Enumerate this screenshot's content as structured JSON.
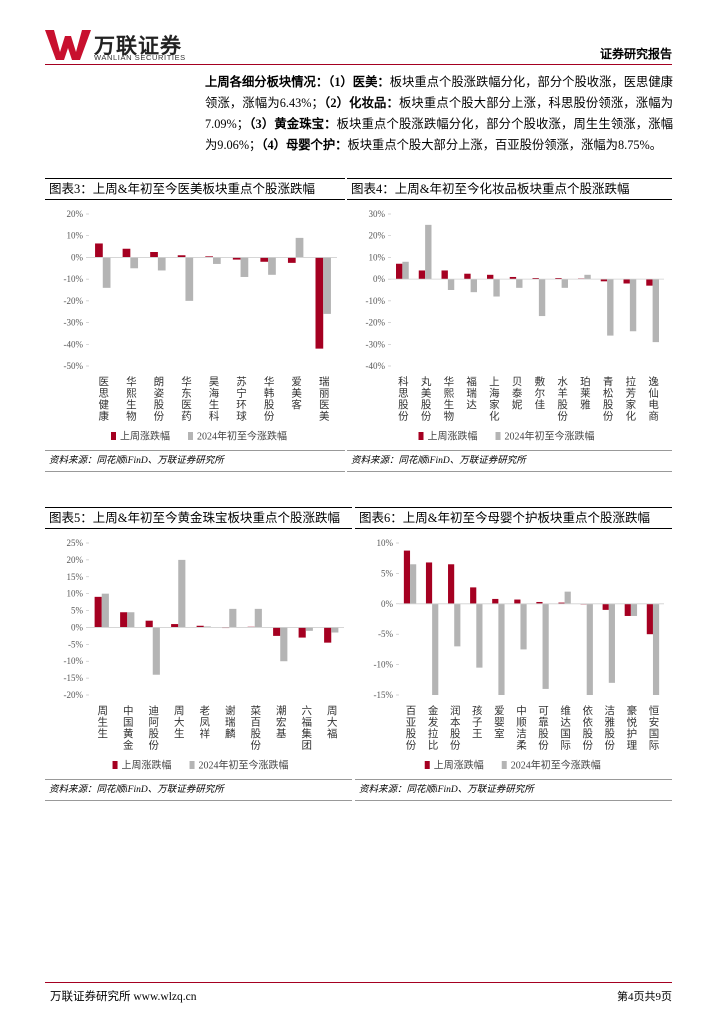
{
  "header": {
    "logo": "万联证券",
    "logo_en": "WANLIAN SECURITIES",
    "report_type": "证券研究报告"
  },
  "summary": [
    {
      "text": "上周各细分板块情况：",
      "bold": true
    },
    {
      "text": "（1）医美：",
      "bold": true
    },
    {
      "text": "板块重点个股涨跌幅分化，部分个股收涨，医思健康领涨，涨幅为6.43%；",
      "bold": false
    },
    {
      "text": "（2）化妆品：",
      "bold": true
    },
    {
      "text": "板块重点个股大部分上涨，科思股份领涨，涨幅为7.09%；",
      "bold": false
    },
    {
      "text": "（3）黄金珠宝：",
      "bold": true
    },
    {
      "text": "板块重点个股涨跌幅分化，部分个股收涨，周生生领涨，涨幅为9.06%；",
      "bold": false
    },
    {
      "text": "（4）母婴个护：",
      "bold": true
    },
    {
      "text": "板块重点个股大部分上涨，百亚股份领涨，涨幅为8.75%。",
      "bold": false
    }
  ],
  "chart_data": [
    {
      "type": "bar",
      "title": "图表3：上周&年初至今医美板块重点个股涨跌幅",
      "categories": [
        "医思健康",
        "华熙生物",
        "朗姿股份",
        "华东医药",
        "昊海生科",
        "苏宁环球",
        "华韩股份",
        "爱美客",
        "瑞丽医美"
      ],
      "series": [
        {
          "name": "上周涨跌幅",
          "color": "#a50021",
          "values": [
            6.43,
            4,
            2.5,
            1,
            0.5,
            -1,
            -2,
            -2.5,
            -42
          ]
        },
        {
          "name": "2024年初至今涨跌幅",
          "color": "#b4b4b4",
          "values": [
            -14,
            -5,
            -6,
            -20,
            -3,
            -9,
            -8,
            9,
            -26
          ]
        }
      ],
      "ylim": [
        -50,
        20
      ],
      "yticks": [
        {
          "value": -50,
          "label": "-50%"
        },
        {
          "value": -40,
          "label": "-40%"
        },
        {
          "value": -30,
          "label": "-30%"
        },
        {
          "value": -20,
          "label": "-20%"
        },
        {
          "value": -10,
          "label": "-10%"
        },
        {
          "value": 0,
          "label": "0%"
        },
        {
          "value": 10,
          "label": "10%"
        },
        {
          "value": 20,
          "label": "20%"
        }
      ],
      "legend": "bottom",
      "source": "资料来源：同花顺iFinD、万联证券研究所"
    },
    {
      "type": "bar",
      "title": "图表4：上周&年初至今化妆品板块重点个股涨跌幅",
      "categories": [
        "科思股份",
        "丸美股份",
        "华熙生物",
        "福瑞达",
        "上海家化",
        "贝泰妮",
        "敷尔佳",
        "水羊股份",
        "珀莱雅",
        "青松股份",
        "拉芳家化",
        "逸仙电商"
      ],
      "series": [
        {
          "name": "上周涨跌幅",
          "color": "#a50021",
          "values": [
            7.09,
            4,
            4,
            2.5,
            2,
            1,
            0.5,
            0.5,
            0.3,
            -1,
            -2,
            -3
          ]
        },
        {
          "name": "2024年初至今涨跌幅",
          "color": "#b4b4b4",
          "values": [
            8,
            25,
            -5,
            -6,
            -8,
            -4,
            -17,
            -4,
            2,
            -26,
            -24,
            -29
          ]
        }
      ],
      "ylim": [
        -40,
        30
      ],
      "yticks": [
        {
          "value": -40,
          "label": "-40%"
        },
        {
          "value": -30,
          "label": "-30%"
        },
        {
          "value": -20,
          "label": "-20%"
        },
        {
          "value": -10,
          "label": "-10%"
        },
        {
          "value": 0,
          "label": "0%"
        },
        {
          "value": 10,
          "label": "10%"
        },
        {
          "value": 20,
          "label": "20%"
        },
        {
          "value": 30,
          "label": "30%"
        }
      ],
      "legend": "bottom",
      "source": "资料来源：同花顺iFinD、万联证券研究所"
    },
    {
      "type": "bar",
      "title": "图表5：上周&年初至今黄金珠宝板块重点个股涨跌幅",
      "categories": [
        "周生生",
        "中国黄金",
        "迪阿股份",
        "周大生",
        "老凤祥",
        "谢瑞麟",
        "菜百股份",
        "潮宏基",
        "六福集团",
        "周大福"
      ],
      "series": [
        {
          "name": "上周涨跌幅",
          "color": "#a50021",
          "values": [
            9.06,
            4.5,
            2,
            1,
            0.5,
            0,
            0.2,
            -2.5,
            -3,
            -4.5
          ]
        },
        {
          "name": "2024年初至今涨跌幅",
          "color": "#b4b4b4",
          "values": [
            10,
            4.5,
            -14,
            20,
            0.3,
            5.5,
            5.5,
            -10,
            -1,
            -1.5
          ]
        }
      ],
      "ylim": [
        -20,
        25
      ],
      "yticks": [
        {
          "value": -20,
          "label": "-20%"
        },
        {
          "value": -15,
          "label": "-15%"
        },
        {
          "value": -10,
          "label": "-10%"
        },
        {
          "value": -5,
          "label": "-5%"
        },
        {
          "value": 0,
          "label": "0%"
        },
        {
          "value": 5,
          "label": "5%"
        },
        {
          "value": 10,
          "label": "10%"
        },
        {
          "value": 15,
          "label": "15%"
        },
        {
          "value": 20,
          "label": "20%"
        },
        {
          "value": 25,
          "label": "25%"
        }
      ],
      "legend": "bottom",
      "source": "资料来源：同花顺iFinD、万联证券研究所"
    },
    {
      "type": "bar",
      "title": "图表6：上周&年初至今母婴个护板块重点个股涨跌幅",
      "categories": [
        "百亚股份",
        "金发拉比",
        "润本股份",
        "孩子王",
        "爱婴室",
        "中顺洁柔",
        "可靠股份",
        "维达国际",
        "依依股份",
        "洁雅股份",
        "豪悦护理",
        "恒安国际"
      ],
      "series": [
        {
          "name": "上周涨跌幅",
          "color": "#a50021",
          "values": [
            8.75,
            6.8,
            6.5,
            2.7,
            0.8,
            0.7,
            0.3,
            0.2,
            0,
            -1,
            -2,
            -5
          ]
        },
        {
          "name": "2024年初至今涨跌幅",
          "color": "#b4b4b4",
          "values": [
            6.5,
            -15,
            -7,
            -10.5,
            -15,
            -7.5,
            -14,
            2,
            -15,
            -13,
            -2,
            -15
          ]
        }
      ],
      "ylim": [
        -15,
        10
      ],
      "yticks": [
        {
          "value": -15,
          "label": "-15%"
        },
        {
          "value": -10,
          "label": "-10%"
        },
        {
          "value": -5,
          "label": "-5%"
        },
        {
          "value": 0,
          "label": "0%"
        },
        {
          "value": 5,
          "label": "5%"
        },
        {
          "value": 10,
          "label": "10%"
        }
      ],
      "legend": "bottom",
      "source": "资料来源：同花顺iFinD、万联证券研究所"
    }
  ],
  "footer": {
    "org": "万联证券研究所 www.wlzq.cn",
    "page": "第4页共9页"
  }
}
